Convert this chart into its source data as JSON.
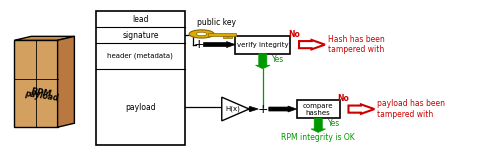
{
  "bg_color": "#ffffff",
  "sections": [
    "lead",
    "signature",
    "header (metadata)",
    "payload"
  ],
  "public_key_label": "public key",
  "verify_box_label": "verify integrity",
  "compare_box_label": "compare\nhashes",
  "hash_func_label": "H(x)",
  "no1_label": "No",
  "no2_label": "No",
  "yes1_label": "Yes",
  "yes2_label": "Yes",
  "ok_label": "RPM integrity is OK",
  "hash_tampered_label": "Hash has been\ntampered with",
  "payload_tampered_label": "payload has been\ntampered with",
  "red_color": "#cc0000",
  "green_color": "#009900",
  "black_color": "#000000",
  "key_color": "#ddaa00",
  "face_col": "#d4a060",
  "top_col": "#c89050",
  "side_col": "#b87840"
}
